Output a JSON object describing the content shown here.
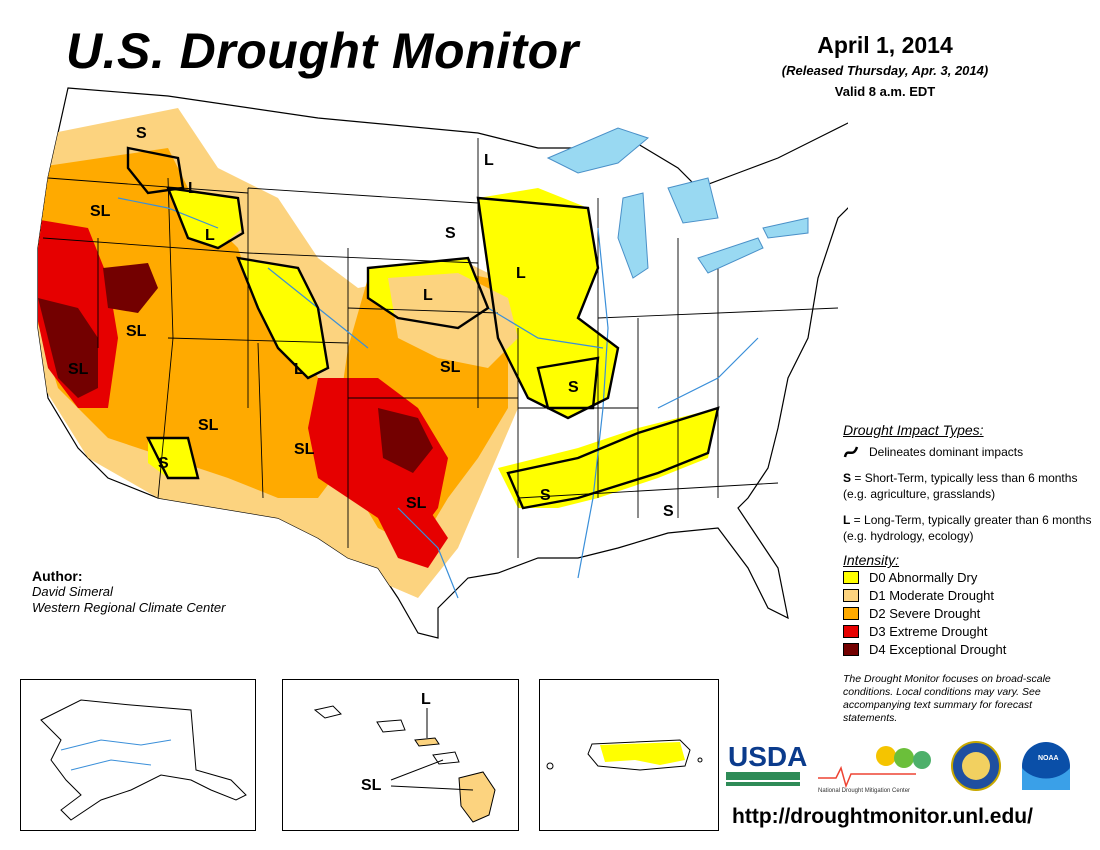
{
  "header": {
    "title": "U.S. Drought Monitor",
    "date": "April 1, 2014",
    "released": "(Released Thursday, Apr. 3, 2014)",
    "valid": "Valid 8 a.m. EDT"
  },
  "impact_types": {
    "title": "Drought Impact Types:",
    "delineates": "Delineates dominant impacts",
    "short_term_key": "S",
    "short_term_text": " = Short-Term, typically less than 6 months (e.g. agriculture, grasslands)",
    "long_term_key": "L",
    "long_term_text": " = Long-Term, typically greater than 6 months (e.g. hydrology, ecology)"
  },
  "intensity": {
    "title": "Intensity:",
    "items": [
      {
        "label": "D0 Abnormally Dry",
        "color": "#ffff00"
      },
      {
        "label": "D1 Moderate Drought",
        "color": "#fcd37f"
      },
      {
        "label": "D2 Severe Drought",
        "color": "#ffaa00"
      },
      {
        "label": "D3 Extreme Drought",
        "color": "#e60000"
      },
      {
        "label": "D4 Exceptional Drought",
        "color": "#730000"
      }
    ]
  },
  "note": "The Drought Monitor focuses on broad-scale conditions. Local conditions may vary. See accompanying text summary for forecast statements.",
  "author": {
    "label": "Author:",
    "name": "David Simeral",
    "org": "Western Regional Climate Center"
  },
  "map_labels": {
    "nw_s": "S",
    "oregon_sl": "SL",
    "idaho_l": "L",
    "idaho_l2": "L",
    "nevada_sl": "SL",
    "cal_sl": "SL",
    "az_sl": "SL",
    "az_s": "S",
    "co_l": "L",
    "nm_sl": "SL",
    "plains_sl": "SL",
    "tx_sl": "SL",
    "ne_l": "L",
    "sd_s": "S",
    "mn_l": "L",
    "ia_l": "L",
    "mo_s": "S",
    "ar_s": "S",
    "ga_s": "S",
    "hi_l": "L",
    "hi_sl": "SL"
  },
  "logos": {
    "usda": "USDA",
    "ndmc": "National Drought Mitigation Center",
    "noaa": "NOAA"
  },
  "url": "http://droughtmonitor.unl.edu/"
}
